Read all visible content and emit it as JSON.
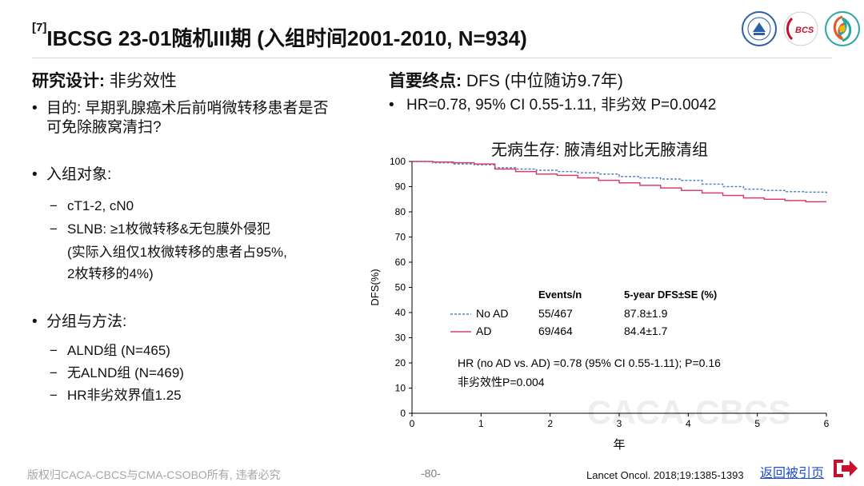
{
  "slide": {
    "title_ref": "[7]",
    "title": "IBCSG 23-01随机III期 (入组时间2001-2010, N=934)"
  },
  "left": {
    "design_label": "研究设计:",
    "design_value": " 非劣效性",
    "bullets": [
      {
        "text": "目的: 早期乳腺癌术后前哨微转移患者是否可免除腋窝清扫?",
        "sub": []
      },
      {
        "text": "入组对象:",
        "sub": [
          "cT1-2, cN0",
          "SLNB: ≥1枚微转移&无包膜外侵犯",
          "(实际入组仅1枚微转移的患者占95%,",
          "2枚转移的4%)"
        ]
      },
      {
        "text": "分组与方法:",
        "sub": [
          "ALND组 (N=465)",
          "无ALND组 (N=469)",
          "HR非劣效界值1.25"
        ]
      }
    ]
  },
  "right": {
    "endpoint_label": "首要终点:",
    "endpoint_value": " DFS (中位随访9.7年)",
    "hr_bullet": "HR=0.78, 95% CI 0.55-1.11, 非劣效 P=0.0042"
  },
  "chart_data": {
    "type": "line",
    "title": "无病生存: 腋清组对比无腋清组",
    "xlabel": "年",
    "ylabel": "DFS(%)",
    "xlim": [
      0,
      6
    ],
    "ylim": [
      0,
      100
    ],
    "xticks": [
      0,
      1,
      2,
      3,
      4,
      5,
      6
    ],
    "yticks": [
      0,
      10,
      20,
      30,
      40,
      50,
      60,
      70,
      80,
      90,
      100
    ],
    "table_headers": [
      "Events/n",
      "5-year DFS±SE (%)"
    ],
    "series": [
      {
        "name": "No AD",
        "events": "55/467",
        "dfs5": "87.8±1.9",
        "color": "#4f86c6",
        "style": "dashed",
        "x": [
          0,
          0.3,
          0.6,
          0.9,
          1.2,
          1.5,
          1.8,
          2.1,
          2.4,
          2.7,
          3.0,
          3.3,
          3.6,
          3.9,
          4.2,
          4.5,
          4.8,
          5.1,
          5.4,
          5.7,
          6.0
        ],
        "y": [
          100,
          99.5,
          99,
          98.7,
          97.5,
          97,
          96.5,
          96,
          95.5,
          95,
          94,
          93.5,
          93,
          92.5,
          91,
          90,
          89,
          88.5,
          88,
          87.8,
          86.5
        ]
      },
      {
        "name": "AD",
        "events": "69/464",
        "dfs5": "84.4±1.7",
        "color": "#d6406a",
        "style": "solid",
        "x": [
          0,
          0.3,
          0.6,
          0.9,
          1.2,
          1.5,
          1.8,
          2.1,
          2.4,
          2.7,
          3.0,
          3.3,
          3.6,
          3.9,
          4.2,
          4.5,
          4.8,
          5.1,
          5.4,
          5.7,
          6.0
        ],
        "y": [
          100,
          99.8,
          99.5,
          99,
          97,
          96,
          95,
          94.5,
          93.5,
          92.5,
          91.5,
          90.5,
          89.5,
          88.5,
          87.5,
          86.5,
          85.5,
          85,
          84.5,
          84,
          84
        ]
      }
    ],
    "annotations": [
      "HR (no AD vs. AD) =0.78 (95% CI 0.55-1.11); P=0.16",
      "非劣效性P=0.004"
    ],
    "grid": false
  },
  "footer": {
    "copyright": "版权归CACA-CBCS与CMA-CSOBO所有, 违者必究",
    "page": "-80-",
    "citation": "Lancet Oncol. 2018;19:1385-1393",
    "back_link": "返回被引页",
    "watermark": "CACA-CBCS"
  },
  "logos": [
    {
      "icon": "society-seal-icon",
      "color": "#2b5fa8"
    },
    {
      "icon": "bcs-logo-icon",
      "color": "#c8102e"
    },
    {
      "icon": "swirl-logo-icon",
      "color": "#2aa6a0"
    }
  ],
  "colors": {
    "accent": "#c8102e",
    "link": "#1f4fd1"
  }
}
